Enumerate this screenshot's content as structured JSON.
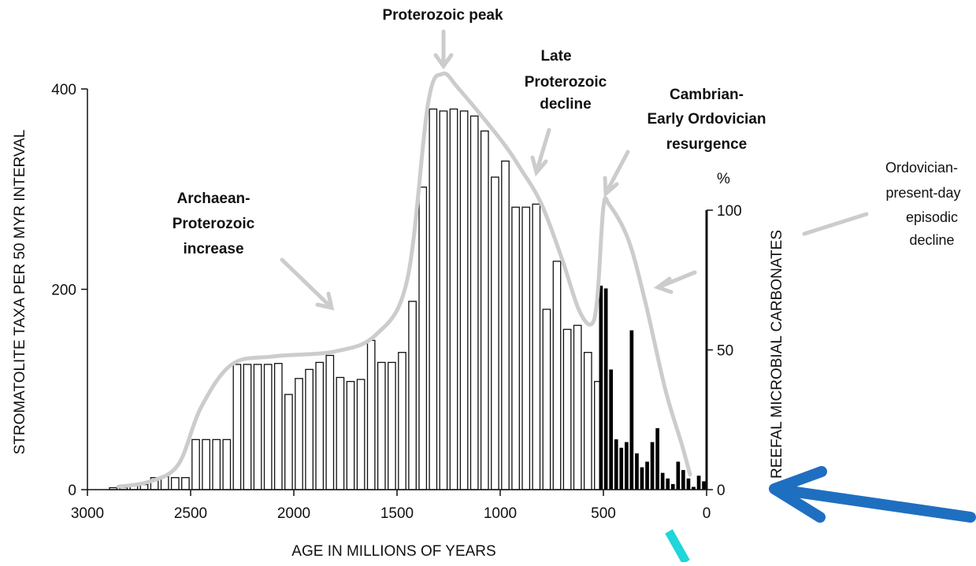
{
  "chart_data": {
    "type": "bar",
    "xlabel": "AGE IN MILLIONS OF YEARS",
    "ylabel_left": "STROMATOLITE TAXA PER 50 MYR INTERVAL",
    "ylabel_right": "REEFAL MICROBIAL CARBONATES",
    "right_unit": "%",
    "x_reversed": true,
    "xlim": [
      3000,
      0
    ],
    "ylim_left": [
      0,
      400
    ],
    "ylim_right": [
      0,
      100
    ],
    "x_ticks": [
      {
        "value": 3000,
        "label": "3000"
      },
      {
        "value": 2500,
        "label": "2500"
      },
      {
        "value": 2000,
        "label": "2000"
      },
      {
        "value": 1500,
        "label": "1500"
      },
      {
        "value": 1000,
        "label": "1000"
      },
      {
        "value": 500,
        "label": "500"
      },
      {
        "value": 0,
        "label": "0"
      }
    ],
    "y_ticks_left": [
      {
        "value": 0,
        "label": "0"
      },
      {
        "value": 200,
        "label": "200"
      },
      {
        "value": 400,
        "label": "400"
      }
    ],
    "y_ticks_right": [
      {
        "value": 0,
        "label": "0"
      },
      {
        "value": 50,
        "label": "50"
      },
      {
        "value": 100,
        "label": "100"
      }
    ],
    "series": [
      {
        "style": "open",
        "x": [
          2875,
          2825,
          2775,
          2725,
          2675,
          2625,
          2575,
          2525,
          2475,
          2425,
          2375,
          2325,
          2275,
          2225,
          2175,
          2125,
          2075,
          2025,
          1975,
          1925,
          1875,
          1825,
          1775,
          1725,
          1675,
          1625,
          1575,
          1525,
          1475,
          1425,
          1375,
          1325,
          1275,
          1225,
          1175,
          1125,
          1075,
          1025,
          975,
          925,
          875,
          825,
          775,
          725,
          675,
          625,
          575,
          525
        ],
        "values": [
          2,
          2,
          5,
          5,
          12,
          13,
          12,
          12,
          50,
          50,
          50,
          50,
          125,
          125,
          125,
          125,
          126,
          95,
          111,
          120,
          127,
          134,
          112,
          108,
          110,
          149,
          127,
          127,
          137,
          188,
          302,
          380,
          378,
          380,
          378,
          373,
          358,
          312,
          328,
          282,
          282,
          285,
          180,
          228,
          160,
          164,
          137,
          108
        ]
      },
      {
        "style": "solid",
        "axis": "right",
        "x": [
          512,
          488,
          463,
          438,
          413,
          388,
          363,
          338,
          313,
          288,
          263,
          238,
          213,
          188,
          163,
          138,
          113,
          88,
          63,
          38,
          13
        ],
        "values": [
          73,
          72,
          43,
          18,
          15,
          17,
          57,
          13,
          8,
          10,
          17,
          22,
          6,
          4,
          2,
          10,
          7,
          4,
          1,
          5,
          3
        ]
      }
    ],
    "trend_curve": [
      [
        2850,
        3
      ],
      [
        2700,
        8
      ],
      [
        2560,
        25
      ],
      [
        2450,
        82
      ],
      [
        2300,
        125
      ],
      [
        2100,
        133
      ],
      [
        1800,
        138
      ],
      [
        1600,
        155
      ],
      [
        1450,
        210
      ],
      [
        1350,
        385
      ],
      [
        1280,
        415
      ],
      [
        1200,
        400
      ],
      [
        1000,
        350
      ],
      [
        900,
        320
      ],
      [
        800,
        285
      ],
      [
        700,
        230
      ],
      [
        620,
        180
      ],
      [
        560,
        165
      ],
      [
        530,
        190
      ],
      [
        500,
        282
      ],
      [
        470,
        284
      ],
      [
        380,
        250
      ],
      [
        300,
        190
      ],
      [
        200,
        100
      ],
      [
        120,
        45
      ],
      [
        80,
        15
      ]
    ],
    "annotations": [
      {
        "text": "Proterozoic peak",
        "bold": true
      },
      {
        "text": "Late Proterozoic decline",
        "bold": true,
        "lines": [
          "Late",
          "Proterozoic",
          "decline"
        ]
      },
      {
        "text": "Cambrian-Early Ordovician resurgence",
        "bold": true,
        "lines": [
          "Cambrian-",
          "Early Ordovician",
          "resurgence"
        ]
      },
      {
        "text": "Archaean-Proterozoic increase",
        "bold": true,
        "lines": [
          "Archaean-",
          "Proterozoic",
          "increase"
        ]
      },
      {
        "text": "Ordovician-present-day episodic decline",
        "bold": false,
        "lines": [
          "Ordovician-",
          "present-day",
          "episodic",
          "decline"
        ]
      }
    ],
    "grid": false
  },
  "colors": {
    "axis": "#111111",
    "bar_open_fill": "#ffffff",
    "bar_solid_fill": "#000000",
    "trend": "#cccccc",
    "callout_blue": "#1f6fc0",
    "callout_cyan": "#1fd6d8"
  }
}
